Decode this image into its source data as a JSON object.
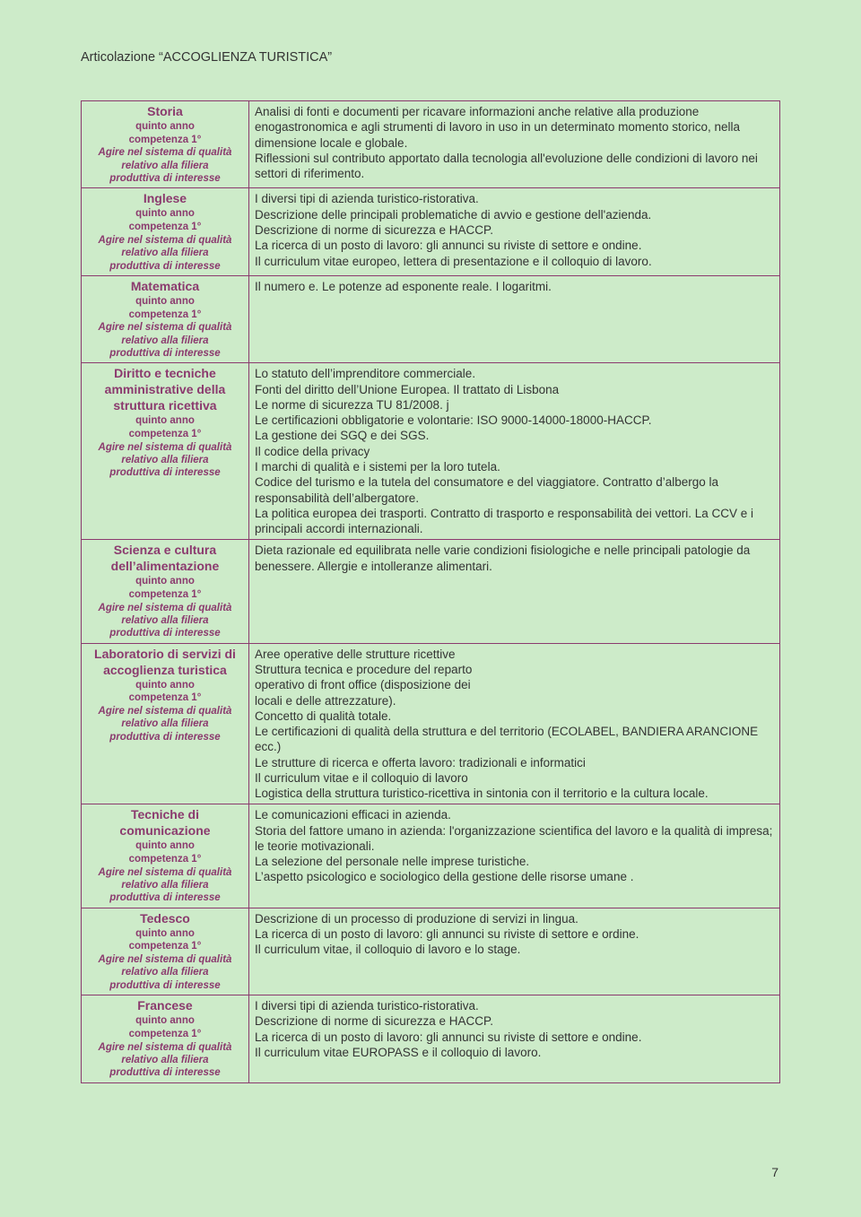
{
  "page": {
    "header": "Articolazione “ACCOGLIENZA TURISTICA”",
    "pageNumber": "7",
    "background": "#cdebc9",
    "borderColor": "#8b3a6e",
    "accentColor": "#8b3a6e",
    "textColor": "#333333",
    "fontFamily": "Arial, Helvetica, sans-serif",
    "leftColWidthPct": 24,
    "baseFontPt": 13.5,
    "subjectFontPt": 14,
    "subLineFontPt": 11.5
  },
  "common": {
    "anno": "quinto anno",
    "competenza": "competenza 1°",
    "agire1": "Agire nel sistema di qualità",
    "agire2": "relativo alla filiera",
    "agire3": "produttiva di interesse"
  },
  "rows": [
    {
      "subject": "Storia",
      "content": "Analisi di fonti e documenti per ricavare informazioni anche relative alla produzione enogastronomica e agli strumenti di lavoro in uso in un determinato momento storico, nella dimensione locale e globale.\nRiflessioni sul contributo apportato dalla tecnologia all'evoluzione delle condizioni di lavoro nei settori di riferimento."
    },
    {
      "subject": "Inglese",
      "content": "I diversi tipi di azienda turistico-ristorativa.\nDescrizione delle principali problematiche di avvio e gestione dell'azienda.\nDescrizione di norme di sicurezza e HACCP.\nLa ricerca di un posto di lavoro: gli annunci su riviste di settore e ondine.\nIl curriculum vitae europeo, lettera di presentazione e il colloquio di lavoro."
    },
    {
      "subject": "Matematica",
      "content": "Il numero e. Le potenze ad esponente reale. I logaritmi."
    },
    {
      "subject": "Diritto e tecniche amministrative della struttura ricettiva",
      "content": "Lo statuto dell’imprenditore commerciale.\nFonti del diritto dell’Unione Europea. Il trattato di Lisbona\nLe norme di sicurezza TU 81/2008. j\nLe certificazioni obbligatorie e volontarie: ISO 9000-14000-18000-HACCP.\nLa gestione dei SGQ e dei SGS.\nIl codice della privacy\nI marchi di qualità e i sistemi per la loro tutela.\nCodice del turismo e la tutela del consumatore e del viaggiatore. Contratto d’albergo la responsabilità dell’albergatore.\nLa politica europea dei trasporti. Contratto di trasporto e responsabilità dei vettori. La CCV e i principali accordi internazionali."
    },
    {
      "subject": "Scienza e cultura dell’alimentazione",
      "content": "Dieta razionale ed equilibrata nelle varie condizioni fisiologiche e nelle principali patologie da benessere. Allergie e intolleranze alimentari."
    },
    {
      "subject": "Laboratorio di servizi di accoglienza turistica",
      "content": "Aree operative delle strutture ricettive\nStruttura tecnica e procedure del reparto\noperativo di front office (disposizione dei\nlocali e delle attrezzature).\nConcetto di qualità totale.\nLe certificazioni di qualità della struttura e del territorio (ECOLABEL, BANDIERA ARANCIONE ecc.)\nLe strutture di ricerca e offerta lavoro: tradizionali e informatici\nIl curriculum vitae e il colloquio di lavoro\nLogistica della struttura turistico-ricettiva in sintonia con il territorio e la cultura locale."
    },
    {
      "subject": "Tecniche di comunicazione",
      "content": "Le comunicazioni efficaci in azienda.\nStoria del fattore umano in azienda: l'organizzazione scientifica del lavoro e la qualità di impresa; le teorie motivazionali.\nLa selezione del personale nelle imprese turistiche.\nL’aspetto psicologico e sociologico della gestione delle risorse umane ."
    },
    {
      "subject": "Tedesco",
      "content": "Descrizione di un processo di produzione di servizi in lingua.\nLa ricerca di un posto di lavoro: gli annunci su riviste di settore e ordine.\nIl curriculum vitae, il colloquio di lavoro e lo stage."
    },
    {
      "subject": "Francese",
      "content": "I diversi tipi di azienda turistico-ristorativa.\nDescrizione di norme di sicurezza e HACCP.\nLa ricerca di un posto di lavoro: gli annunci su riviste di settore e ondine.\nIl curriculum vitae EUROPASS e il colloquio di lavoro."
    }
  ]
}
